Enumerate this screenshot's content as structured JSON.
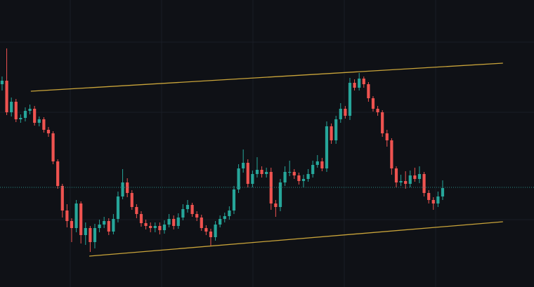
{
  "chart_data": {
    "type": "candlestick",
    "up_color": "#26a69a",
    "down_color": "#ef5350",
    "background": "#0f1116",
    "xlim": [
      -0.45,
      114.7
    ],
    "ylim": [
      0,
      409
    ],
    "open": [
      289,
      294,
      249,
      264,
      239,
      241,
      251,
      254,
      234,
      239,
      224,
      219,
      179,
      144,
      109,
      94,
      84,
      119,
      74,
      84,
      64,
      84,
      89,
      94,
      79,
      97,
      129,
      149,
      134,
      114,
      104,
      91,
      87,
      84,
      87,
      81,
      89,
      97,
      87,
      99,
      111,
      117,
      104,
      99,
      84,
      79,
      71,
      89,
      97,
      101,
      109,
      139,
      169,
      177,
      147,
      161,
      167,
      161,
      164,
      119,
      114,
      149,
      164,
      164,
      159,
      151,
      154,
      161,
      174,
      179,
      169,
      229,
      209,
      239,
      254,
      244,
      291,
      284,
      297,
      289,
      269,
      254,
      249,
      219,
      209,
      169,
      149,
      151,
      147,
      159,
      154,
      161,
      134,
      124,
      119,
      129
    ],
    "high": [
      300,
      340,
      270,
      268,
      246,
      256,
      260,
      258,
      243,
      242,
      228,
      222,
      182,
      147,
      118,
      98,
      124,
      122,
      92,
      87,
      90,
      96,
      100,
      98,
      104,
      136,
      168,
      155,
      138,
      118,
      108,
      96,
      92,
      92,
      92,
      95,
      104,
      102,
      105,
      118,
      124,
      120,
      108,
      103,
      88,
      83,
      94,
      102,
      106,
      115,
      144,
      175,
      196,
      182,
      166,
      185,
      172,
      170,
      170,
      124,
      154,
      172,
      180,
      168,
      163,
      160,
      168,
      180,
      188,
      184,
      236,
      233,
      244,
      262,
      258,
      298,
      296,
      305,
      300,
      292,
      272,
      258,
      252,
      224,
      212,
      172,
      160,
      165,
      166,
      170,
      172,
      164,
      138,
      128,
      136,
      152
    ],
    "low": [
      280,
      245,
      243,
      235,
      234,
      236,
      246,
      230,
      229,
      220,
      214,
      175,
      140,
      99,
      85,
      64,
      78,
      62,
      60,
      50,
      55,
      78,
      84,
      74,
      75,
      92,
      125,
      128,
      110,
      98,
      86,
      82,
      78,
      78,
      75,
      76,
      85,
      82,
      83,
      95,
      106,
      100,
      94,
      80,
      74,
      58,
      66,
      85,
      92,
      96,
      104,
      134,
      163,
      142,
      142,
      156,
      156,
      156,
      110,
      100,
      108,
      144,
      158,
      154,
      146,
      142,
      150,
      156,
      170,
      165,
      164,
      204,
      204,
      234,
      240,
      238,
      280,
      280,
      284,
      264,
      250,
      244,
      214,
      200,
      160,
      142,
      144,
      140,
      142,
      150,
      148,
      129,
      119,
      110,
      114,
      124
    ],
    "close": [
      294,
      249,
      264,
      239,
      241,
      251,
      254,
      234,
      239,
      224,
      219,
      179,
      144,
      109,
      94,
      84,
      119,
      74,
      84,
      64,
      84,
      89,
      94,
      79,
      97,
      129,
      149,
      134,
      114,
      104,
      91,
      87,
      84,
      87,
      81,
      89,
      97,
      87,
      99,
      111,
      117,
      104,
      99,
      84,
      79,
      71,
      89,
      97,
      101,
      109,
      139,
      169,
      177,
      147,
      161,
      167,
      161,
      164,
      119,
      114,
      149,
      164,
      164,
      159,
      151,
      154,
      161,
      174,
      179,
      169,
      229,
      209,
      239,
      254,
      244,
      291,
      284,
      297,
      289,
      269,
      254,
      249,
      219,
      209,
      169,
      149,
      151,
      147,
      159,
      154,
      161,
      134,
      124,
      119,
      129,
      141
    ],
    "trend_lines": [
      {
        "color": "#c9a43a",
        "x": [
          6.2,
          108
        ],
        "y": [
          279,
          319
        ]
      },
      {
        "color": "#c9a43a",
        "x": [
          18.8,
          108
        ],
        "y": [
          44,
          93
        ]
      }
    ],
    "price_line": {
      "value": 142,
      "color": "#2a8a87"
    }
  }
}
